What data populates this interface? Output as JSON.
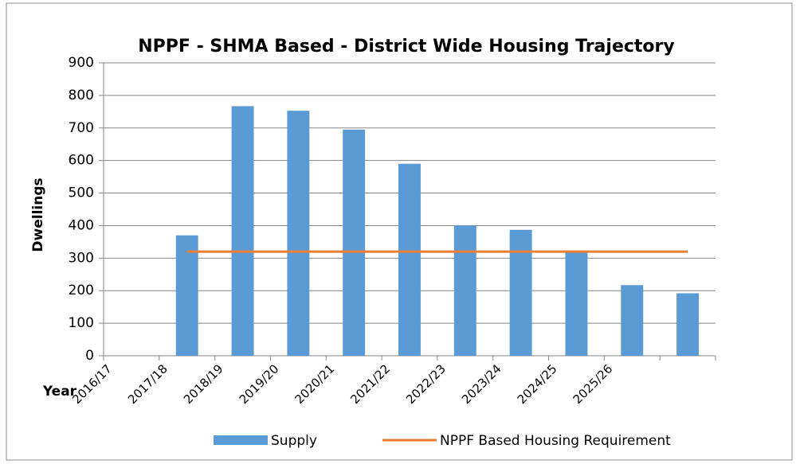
{
  "chart_data": {
    "type": "bar",
    "title": "NPPF - SHMA Based - District Wide Housing Trajectory",
    "xlabel": "Year",
    "ylabel": "Dwellings",
    "categories": [
      "2016/17",
      "2017/18",
      "2018/19",
      "2019/20",
      "2020/21",
      "2021/22",
      "2022/23",
      "2023/24",
      "2024/25",
      "2025/26",
      null
    ],
    "series": [
      {
        "name": "Supply",
        "type": "bar",
        "color": "#5b9bd5",
        "values": [
          null,
          370,
          767,
          753,
          695,
          590,
          400,
          387,
          320,
          217,
          192
        ]
      },
      {
        "name": "NPPF Based Housing Requirement",
        "type": "line",
        "color": "#ed7d31",
        "values": [
          null,
          320,
          320,
          320,
          320,
          320,
          320,
          320,
          320,
          320,
          320
        ]
      }
    ],
    "ylim": [
      0,
      900
    ],
    "yticks": [
      0,
      100,
      200,
      300,
      400,
      500,
      600,
      700,
      800,
      900
    ],
    "grid": true,
    "legend": "bottom"
  }
}
